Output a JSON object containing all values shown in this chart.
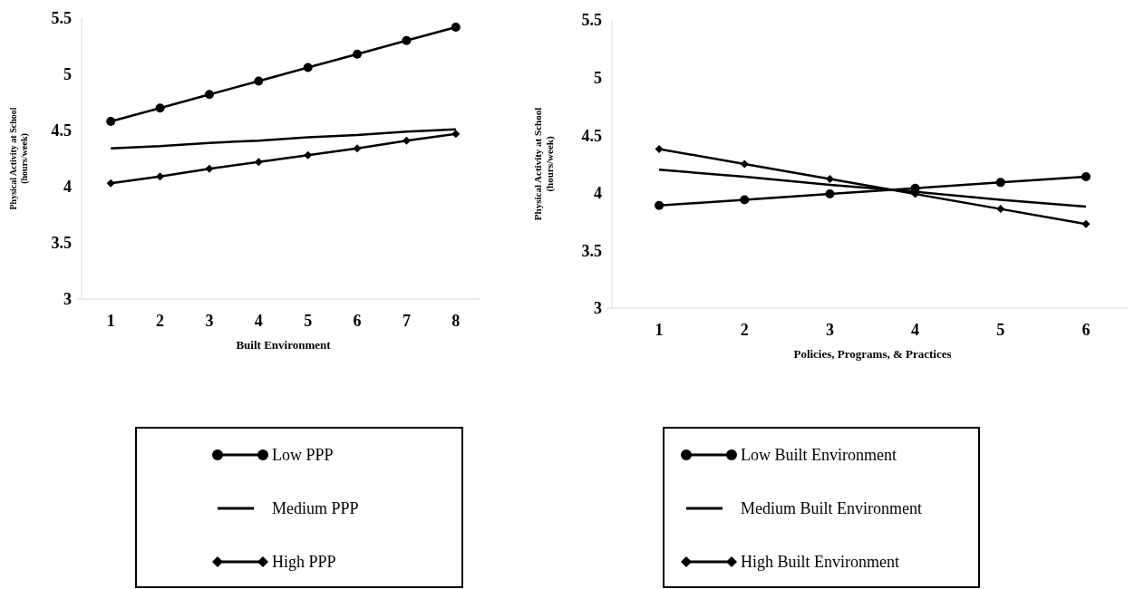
{
  "chart_data": [
    {
      "type": "line",
      "xlabel": "Built Environment",
      "ylabel": "Physical Activity at School (hours/week)",
      "categories": [
        "1",
        "2",
        "3",
        "4",
        "5",
        "6",
        "7",
        "8"
      ],
      "ylim": [
        3,
        5.5
      ],
      "yticks": [
        3,
        3.5,
        4,
        4.5,
        5,
        5.5
      ],
      "grid": false,
      "legend": "bottom",
      "series": [
        {
          "name": "Low PPP",
          "color": "#000000",
          "marker": "circle",
          "values": [
            4.58,
            4.7,
            4.82,
            4.94,
            5.06,
            5.18,
            5.3,
            5.42
          ]
        },
        {
          "name": "Medium PPP",
          "color": "#000000",
          "marker": "none",
          "values": [
            4.34,
            4.36,
            4.39,
            4.41,
            4.44,
            4.46,
            4.49,
            4.51
          ]
        },
        {
          "name": "High PPP",
          "color": "#000000",
          "marker": "diamond",
          "values": [
            4.03,
            4.09,
            4.16,
            4.22,
            4.28,
            4.34,
            4.41,
            4.47
          ]
        }
      ]
    },
    {
      "type": "line",
      "xlabel": "Policies, Programs, & Practices",
      "ylabel": "Physical Activity at School (hours/week)",
      "categories": [
        "1",
        "2",
        "3",
        "4",
        "5",
        "6"
      ],
      "ylim": [
        3,
        5.5
      ],
      "yticks": [
        3,
        3.5,
        4,
        4.5,
        5,
        5.5
      ],
      "grid": false,
      "legend": "bottom",
      "series": [
        {
          "name": "Low Built Environment",
          "color": "#000000",
          "marker": "circle",
          "values": [
            3.89,
            3.94,
            3.99,
            4.04,
            4.09,
            4.14
          ]
        },
        {
          "name": "Medium Built Environment",
          "color": "#000000",
          "marker": "none",
          "values": [
            4.2,
            4.14,
            4.07,
            4.01,
            3.94,
            3.88
          ]
        },
        {
          "name": "High Built Environment",
          "color": "#000000",
          "marker": "diamond",
          "values": [
            4.38,
            4.25,
            4.12,
            3.99,
            3.86,
            3.73
          ]
        }
      ]
    }
  ]
}
